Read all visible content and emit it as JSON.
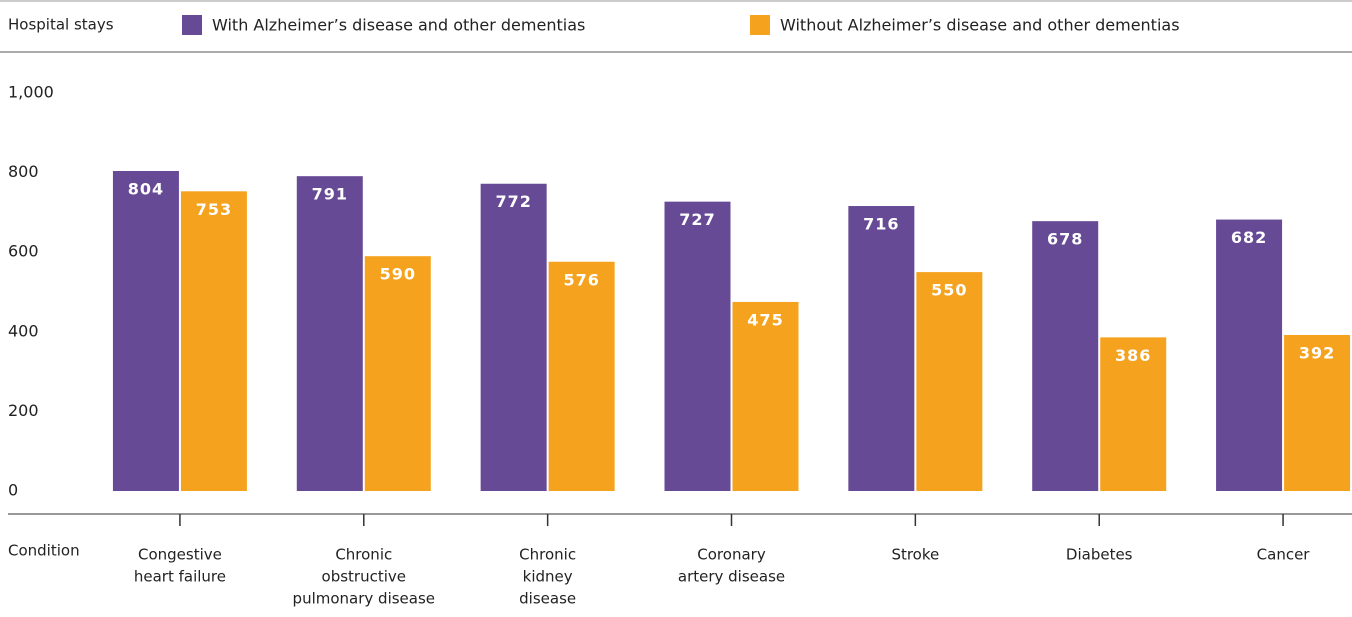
{
  "chart_data": {
    "type": "bar",
    "title": "Hospital stays",
    "x_label": "Condition",
    "categories": [
      [
        "Congestive",
        "heart failure"
      ],
      [
        "Chronic",
        "obstructive",
        "pulmonary disease"
      ],
      [
        "Chronic",
        "kidney",
        "disease"
      ],
      [
        "Coronary",
        "artery disease"
      ],
      [
        "Stroke"
      ],
      [
        "Diabetes"
      ],
      [
        "Cancer"
      ]
    ],
    "series": [
      {
        "name": "With Alzheimer’s disease and other dementias",
        "color": "#664a95",
        "values": [
          804,
          791,
          772,
          727,
          716,
          678,
          682
        ]
      },
      {
        "name": "Without Alzheimer’s disease and other dementias",
        "color": "#f5a31e",
        "values": [
          753,
          590,
          576,
          475,
          550,
          386,
          392
        ]
      }
    ],
    "ylim": [
      0,
      1000
    ],
    "yticks": [
      0,
      200,
      400,
      600,
      800,
      {
        "value": 1000,
        "label": "1,000"
      }
    ]
  }
}
